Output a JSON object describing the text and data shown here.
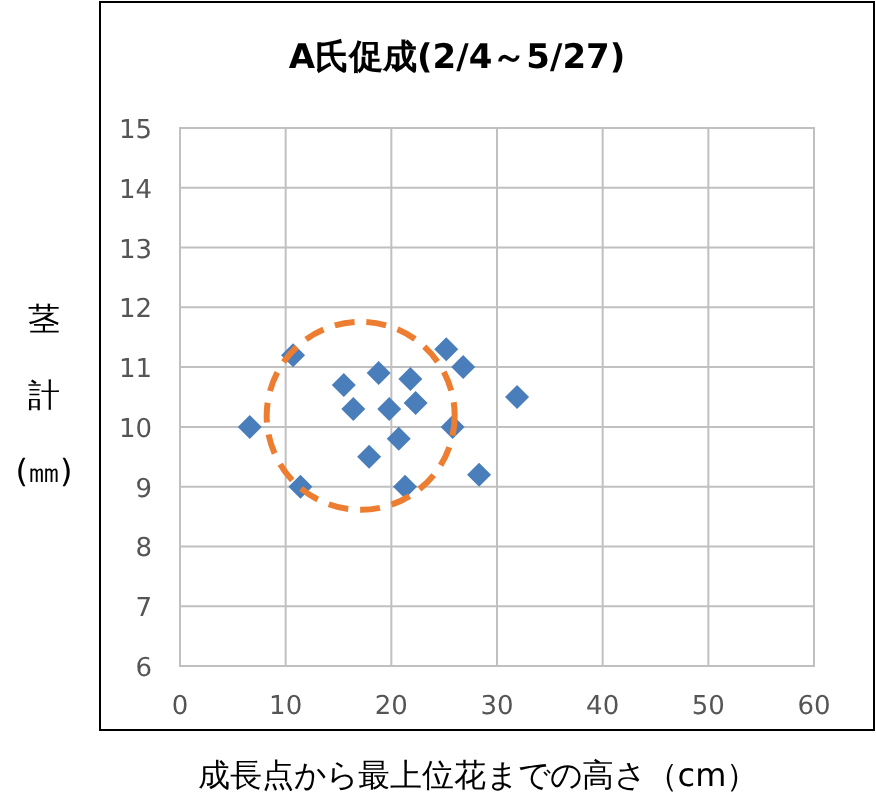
{
  "chart_data": {
    "type": "scatter",
    "title": "A氏促成(2/4～5/27)",
    "xlabel": "成長点から最上位花までの高さ（cm）",
    "ylabel": "茎計(㎜)",
    "x": [
      10.7,
      25.2,
      26.8,
      15.5,
      18.8,
      21.8,
      16.4,
      19.8,
      22.3,
      31.9,
      6.6,
      25.8,
      20.7,
      17.9,
      11.4,
      21.3,
      28.3
    ],
    "series": [
      {
        "color": "#4a7ebb",
        "values": [
          11.2,
          11.3,
          11.0,
          10.7,
          10.9,
          10.8,
          10.3,
          10.3,
          10.4,
          10.5,
          10.0,
          10.0,
          9.8,
          9.5,
          9.0,
          9.0,
          9.2
        ]
      }
    ],
    "xlim": [
      0,
      60
    ],
    "xticks": [
      0,
      10,
      20,
      30,
      40,
      50,
      60
    ],
    "ylim": [
      6,
      15
    ],
    "yticks": [
      6,
      7,
      8,
      9,
      10,
      11,
      12,
      13,
      14,
      15
    ],
    "grid": true,
    "marker": "diamond"
  }
}
